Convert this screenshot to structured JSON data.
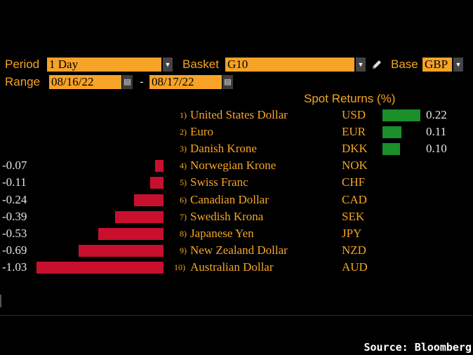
{
  "toolbar": {
    "period_label": "Period",
    "period_value": "1 Day",
    "basket_label": "Basket",
    "basket_value": "G10",
    "base_label": "Base",
    "base_value": "GBP",
    "range_label": "Range",
    "range_start": "08/16/22",
    "range_separator": "-",
    "range_end": "08/17/22",
    "icons": [
      "dropdown-arrow-icon",
      "pencil-icon",
      "calendar-icon"
    ]
  },
  "source": "Source: Bloomberg",
  "colors": {
    "accent": "#f5a623",
    "positive": "#1a8f2a",
    "negative": "#c8102e",
    "field_bg": "#f7a328"
  },
  "chart_data": {
    "type": "bar",
    "orientation": "horizontal-diverging",
    "title": "Spot Returns (%)",
    "categories": [
      "United States Dollar",
      "Euro",
      "Danish Krone",
      "Norwegian Krone",
      "Swiss Franc",
      "Canadian Dollar",
      "Swedish Krona",
      "Japanese Yen",
      "New Zealand Dollar",
      "Australian Dollar"
    ],
    "ranks": [
      "1)",
      "2)",
      "3)",
      "4)",
      "5)",
      "6)",
      "7)",
      "8)",
      "9)",
      "10)"
    ],
    "codes": [
      "USD",
      "EUR",
      "DKK",
      "NOK",
      "CHF",
      "CAD",
      "SEK",
      "JPY",
      "NZD",
      "AUD"
    ],
    "values": [
      0.22,
      0.11,
      0.1,
      -0.07,
      -0.11,
      -0.24,
      -0.39,
      -0.53,
      -0.69,
      -1.03
    ],
    "value_labels": [
      "0.22",
      "0.11",
      "0.10",
      "-0.07",
      "-0.11",
      "-0.24",
      "-0.39",
      "-0.53",
      "-0.69",
      "-1.03"
    ],
    "grid": false,
    "legend": "none"
  }
}
